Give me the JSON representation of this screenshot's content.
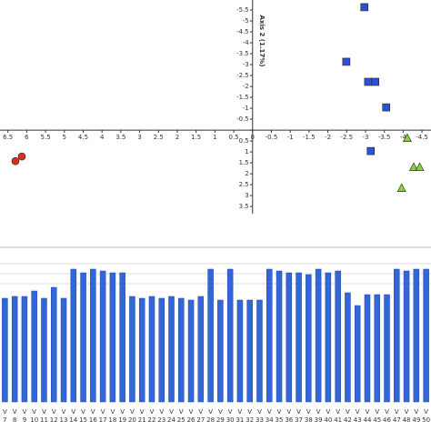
{
  "chart_data": [
    {
      "type": "scatter",
      "axis_label": "Axis 2 (1.17%)",
      "xlim": [
        6.71,
        -4.74
      ],
      "ylim": [
        -5.96,
        3.83
      ],
      "xticks": [
        6.5,
        6,
        5.5,
        5,
        4.5,
        4,
        3.5,
        3,
        2.5,
        2,
        1.5,
        1,
        0.5,
        0,
        -0.5,
        -1,
        -1.5,
        -2,
        -2.5,
        -3,
        -3.5,
        -4,
        -4.5
      ],
      "yticks": [
        -5.5,
        -5,
        -4.5,
        -4,
        -3.5,
        -3,
        -2.5,
        -2,
        -1.5,
        -1,
        -0.5,
        0,
        0.5,
        1,
        1.5,
        2,
        2.5,
        3,
        3.5
      ],
      "series": [
        {
          "color": "#d9301e",
          "marker": "circle",
          "x": [
            6.3,
            6.13
          ],
          "values": [
            1.42,
            1.21
          ]
        },
        {
          "color": "#2f4fd8",
          "marker": "square",
          "x": [
            -2.97,
            -2.49,
            -3.07,
            -3.26,
            -3.55,
            -3.14
          ],
          "values": [
            -5.63,
            -3.13,
            -2.21,
            -2.21,
            -1.04,
            0.96
          ]
        },
        {
          "color": "#8bd13a",
          "marker": "triangle",
          "x": [
            -4.11,
            -3.96,
            -4.28,
            -4.44
          ],
          "values": [
            0.38,
            2.67,
            1.71,
            1.71
          ]
        }
      ]
    },
    {
      "type": "bar",
      "color": "#3366d6",
      "ylim": [
        0,
        15.2
      ],
      "categories": [
        "V 7",
        "V 8",
        "V 9",
        "V 10",
        "V 11",
        "V 12",
        "V 13",
        "V 14",
        "V 15",
        "V 16",
        "V 17",
        "V 18",
        "V 19",
        "V 20",
        "V 21",
        "V 22",
        "V 23",
        "V 24",
        "V 25",
        "V 26",
        "V 27",
        "V 28",
        "V 29",
        "V 30",
        "V 31",
        "V 32",
        "V 33",
        "V 34",
        "V 35",
        "V 36",
        "V 37",
        "V 38",
        "V 39",
        "V 40",
        "V 41",
        "V 42",
        "V 43",
        "V 44",
        "V 45",
        "V 46",
        "V 47",
        "V 48",
        "V 49",
        "V 50"
      ],
      "values": [
        11.4,
        11.6,
        11.6,
        12.2,
        11.4,
        12.6,
        11.4,
        14.6,
        14.2,
        14.6,
        14.4,
        14.2,
        14.2,
        11.6,
        11.4,
        11.6,
        11.4,
        11.6,
        11.4,
        11.2,
        11.6,
        14.6,
        11.2,
        14.6,
        11.2,
        11.2,
        11.2,
        14.6,
        14.4,
        14.2,
        14.2,
        14.0,
        14.6,
        14.2,
        14.4,
        12.0,
        10.6,
        11.8,
        11.8,
        11.8,
        14.6,
        14.4,
        14.6,
        14.6
      ]
    }
  ]
}
